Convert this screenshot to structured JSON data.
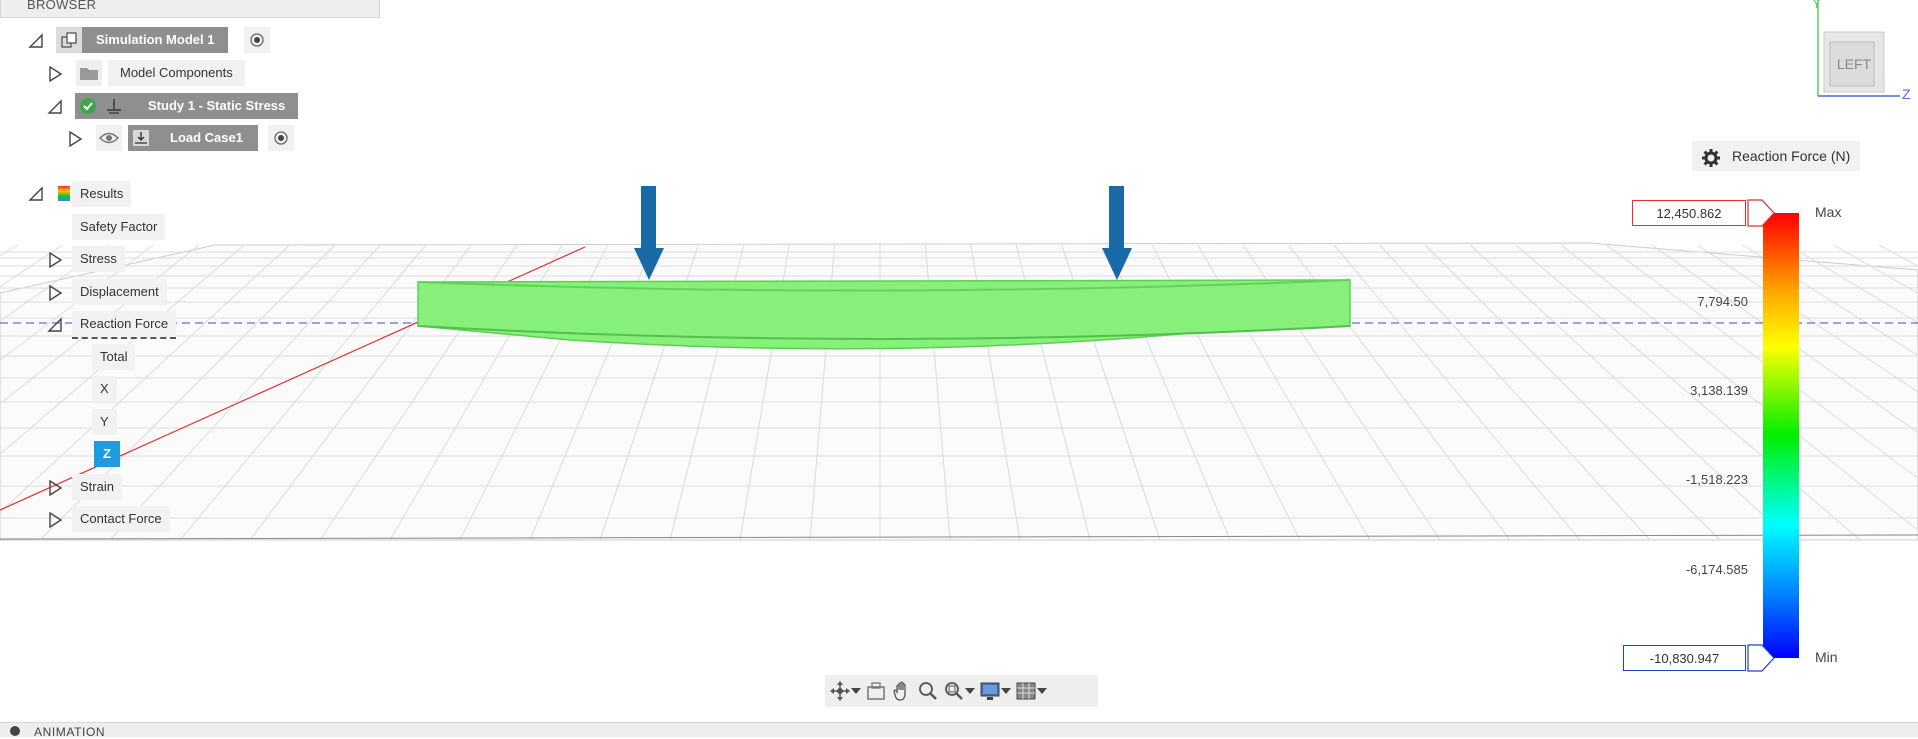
{
  "browser": {
    "header": "BROWSER",
    "simulation_model": "Simulation Model 1",
    "model_components": "Model Components",
    "study": "Study 1 - Static Stress",
    "load_case": "Load Case1",
    "results": {
      "label": "Results",
      "items": {
        "safety_factor": "Safety Factor",
        "stress": "Stress",
        "displacement": "Displacement",
        "reaction_force": "Reaction Force",
        "total": "Total",
        "x": "X",
        "y": "Y",
        "z": "Z",
        "strain": "Strain",
        "contact_force": "Contact Force"
      },
      "selected": "Z"
    }
  },
  "legend": {
    "title": "Reaction Force (N)",
    "max_label": "Max",
    "min_label": "Min",
    "max_value": "12,450.862",
    "min_value": "-10,830.947",
    "ticks": [
      "7,794.50",
      "3,138.139",
      "-1,518.223",
      "-6,174.585"
    ]
  },
  "viewcube": {
    "face": "LEFT",
    "axis_y": "Y",
    "axis_z": "Z"
  },
  "animation_bar": {
    "label": "ANIMATION"
  },
  "colors": {
    "beam": "#86f07a",
    "arrow": "#1a6aa8",
    "selected": "#1f9bde",
    "study_check": "#3ca64a",
    "max_box": "#e03030",
    "min_box": "#2040d0"
  },
  "icons": [
    "component-icon",
    "folder-icon",
    "check-icon",
    "study-icon",
    "eye-icon",
    "load-case-icon",
    "radio-icon",
    "results-color-icon",
    "gear-icon",
    "orbit-icon",
    "look-at-icon",
    "pan-icon",
    "zoom-icon",
    "zoom-window-icon",
    "display-icon",
    "grid-icon",
    "expand-arrow-icon",
    "collapse-arrow-icon"
  ]
}
